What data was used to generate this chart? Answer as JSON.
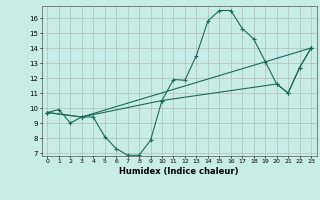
{
  "title": "",
  "xlabel": "Humidex (Indice chaleur)",
  "bg_color": "#c8ece8",
  "grid_color": "#b0b0b0",
  "line_color": "#1a6b5a",
  "xlim": [
    -0.5,
    23.5
  ],
  "ylim": [
    6.8,
    16.8
  ],
  "yticks": [
    7,
    8,
    9,
    10,
    11,
    12,
    13,
    14,
    15,
    16
  ],
  "xticks": [
    0,
    1,
    2,
    3,
    4,
    5,
    6,
    7,
    8,
    9,
    10,
    11,
    12,
    13,
    14,
    15,
    16,
    17,
    18,
    19,
    20,
    21,
    22,
    23
  ],
  "line1_x": [
    0,
    1,
    2,
    3,
    4,
    5,
    6,
    7,
    8,
    9,
    10,
    11,
    12,
    13,
    14,
    15,
    16,
    17,
    18,
    19,
    20,
    21,
    22,
    23
  ],
  "line1_y": [
    9.7,
    9.9,
    9.0,
    9.4,
    9.4,
    8.1,
    7.3,
    6.85,
    6.85,
    7.85,
    10.5,
    11.9,
    11.85,
    13.5,
    15.8,
    16.5,
    16.5,
    15.3,
    14.6,
    13.1,
    11.6,
    11.0,
    12.7,
    14.0
  ],
  "line2_x": [
    0,
    3,
    23
  ],
  "line2_y": [
    9.7,
    9.4,
    14.0
  ],
  "line3_x": [
    0,
    3,
    10,
    20,
    21,
    22,
    23
  ],
  "line3_y": [
    9.7,
    9.4,
    10.5,
    11.6,
    11.0,
    12.7,
    14.0
  ]
}
